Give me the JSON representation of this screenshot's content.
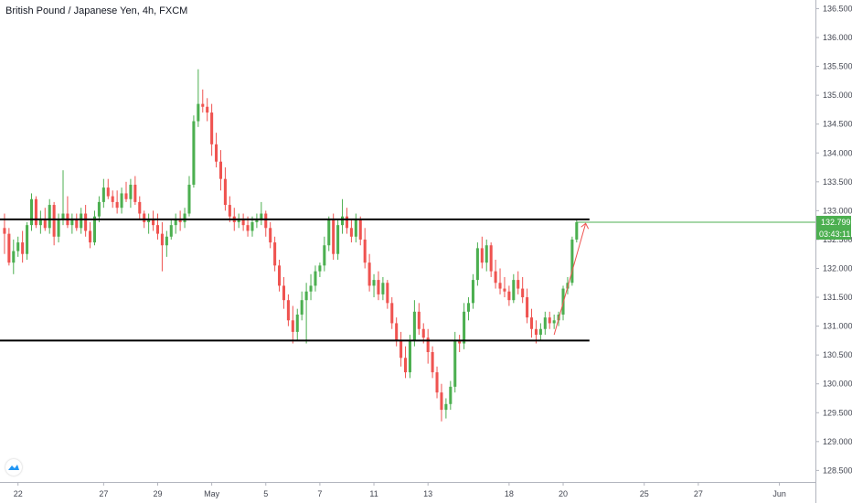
{
  "header": {
    "title": "British Pound / Japanese Yen, 4h, FXCM"
  },
  "colors": {
    "up": "#4caf50",
    "down": "#ef5350",
    "level": "#000000",
    "price_line": "#4caf50",
    "grid": "#f0f3fa",
    "axis": "#b2b5be"
  },
  "icons": {
    "logo": "tradingview-logo-icon"
  },
  "chart_data": {
    "type": "candlestick",
    "title": "British Pound / Japanese Yen, 4h, FXCM",
    "ylim": [
      128.3,
      136.65
    ],
    "y_ticks": [
      "128.500",
      "129.000",
      "129.500",
      "130.000",
      "130.500",
      "131.000",
      "131.500",
      "132.000",
      "132.500",
      "133.000",
      "133.500",
      "134.000",
      "134.500",
      "135.000",
      "135.500",
      "136.000",
      "136.500"
    ],
    "x_ticks": [
      {
        "label": "22",
        "bar": 3
      },
      {
        "label": "27",
        "bar": 22
      },
      {
        "label": "29",
        "bar": 34
      },
      {
        "label": "May",
        "bar": 46
      },
      {
        "label": "5",
        "bar": 58
      },
      {
        "label": "7",
        "bar": 70
      },
      {
        "label": "11",
        "bar": 82
      },
      {
        "label": "13",
        "bar": 94
      },
      {
        "label": "18",
        "bar": 112
      },
      {
        "label": "20",
        "bar": 124
      },
      {
        "label": "25",
        "bar": 142
      },
      {
        "label": "27",
        "bar": 154
      },
      {
        "label": "Jun",
        "bar": 172
      }
    ],
    "x_range": [
      -1,
      180
    ],
    "levels": [
      132.85,
      130.75
    ],
    "last_price": "132.799",
    "countdown": "03:43:11",
    "candles": [
      [
        132.7,
        132.95,
        132.25,
        132.6
      ],
      [
        132.6,
        132.7,
        132.05,
        132.1
      ],
      [
        132.1,
        132.5,
        131.9,
        132.3
      ],
      [
        132.3,
        132.55,
        132.2,
        132.45
      ],
      [
        132.45,
        132.65,
        132.1,
        132.25
      ],
      [
        132.25,
        132.8,
        132.15,
        132.75
      ],
      [
        132.75,
        133.3,
        132.65,
        133.2
      ],
      [
        133.2,
        133.25,
        132.7,
        132.75
      ],
      [
        132.75,
        133.0,
        132.6,
        132.85
      ],
      [
        132.85,
        133.05,
        132.65,
        132.7
      ],
      [
        132.7,
        133.2,
        132.6,
        133.1
      ],
      [
        133.1,
        133.15,
        132.4,
        132.55
      ],
      [
        132.55,
        132.95,
        132.45,
        132.85
      ],
      [
        132.85,
        133.7,
        132.75,
        132.95
      ],
      [
        132.95,
        133.25,
        132.7,
        132.75
      ],
      [
        132.75,
        132.95,
        132.6,
        132.85
      ],
      [
        132.85,
        132.95,
        132.65,
        132.7
      ],
      [
        132.7,
        133.05,
        132.6,
        132.95
      ],
      [
        132.95,
        133.1,
        132.55,
        132.65
      ],
      [
        132.65,
        132.8,
        132.35,
        132.45
      ],
      [
        132.45,
        133.0,
        132.4,
        132.9
      ],
      [
        132.9,
        133.25,
        132.8,
        133.15
      ],
      [
        133.15,
        133.55,
        133.05,
        133.4
      ],
      [
        133.4,
        133.55,
        133.2,
        133.25
      ],
      [
        133.25,
        133.35,
        133.05,
        133.15
      ],
      [
        133.15,
        133.35,
        132.95,
        133.05
      ],
      [
        133.05,
        133.4,
        132.95,
        133.3
      ],
      [
        133.3,
        133.5,
        133.15,
        133.2
      ],
      [
        133.2,
        133.55,
        133.05,
        133.45
      ],
      [
        133.45,
        133.6,
        133.1,
        133.15
      ],
      [
        133.15,
        133.25,
        132.85,
        132.95
      ],
      [
        132.95,
        133.0,
        132.7,
        132.8
      ],
      [
        132.8,
        132.95,
        132.6,
        132.85
      ],
      [
        132.85,
        133.0,
        132.65,
        132.75
      ],
      [
        132.75,
        132.95,
        132.5,
        132.6
      ],
      [
        132.6,
        132.8,
        131.95,
        132.4
      ],
      [
        132.4,
        132.65,
        132.2,
        132.55
      ],
      [
        132.55,
        132.85,
        132.5,
        132.75
      ],
      [
        132.75,
        132.95,
        132.6,
        132.85
      ],
      [
        132.85,
        133.0,
        132.65,
        132.8
      ],
      [
        132.8,
        133.05,
        132.7,
        132.95
      ],
      [
        132.95,
        133.6,
        132.9,
        133.45
      ],
      [
        133.45,
        134.65,
        133.4,
        134.55
      ],
      [
        134.55,
        135.45,
        134.45,
        134.85
      ],
      [
        134.85,
        135.1,
        134.7,
        134.8
      ],
      [
        134.8,
        134.95,
        134.55,
        134.7
      ],
      [
        134.7,
        134.85,
        133.95,
        134.15
      ],
      [
        134.15,
        134.35,
        133.75,
        133.85
      ],
      [
        133.85,
        134.05,
        133.35,
        133.55
      ],
      [
        133.55,
        133.75,
        133.0,
        133.1
      ],
      [
        133.1,
        133.25,
        132.8,
        132.9
      ],
      [
        132.9,
        133.05,
        132.65,
        132.8
      ],
      [
        132.8,
        132.95,
        132.7,
        132.85
      ],
      [
        132.85,
        132.95,
        132.65,
        132.75
      ],
      [
        132.75,
        132.9,
        132.55,
        132.65
      ],
      [
        132.65,
        132.9,
        132.55,
        132.8
      ],
      [
        132.8,
        132.95,
        132.7,
        132.85
      ],
      [
        132.85,
        133.15,
        132.75,
        132.95
      ],
      [
        132.95,
        133.0,
        132.55,
        132.7
      ],
      [
        132.7,
        132.8,
        132.35,
        132.45
      ],
      [
        132.45,
        132.55,
        131.95,
        132.05
      ],
      [
        132.05,
        132.15,
        131.6,
        131.7
      ],
      [
        131.7,
        131.85,
        131.3,
        131.45
      ],
      [
        131.45,
        131.55,
        131.0,
        131.1
      ],
      [
        131.1,
        131.35,
        130.7,
        130.9
      ],
      [
        130.9,
        131.3,
        130.75,
        131.2
      ],
      [
        131.2,
        131.6,
        131.1,
        131.45
      ],
      [
        131.45,
        131.75,
        130.7,
        131.6
      ],
      [
        131.6,
        131.9,
        131.45,
        131.7
      ],
      [
        131.7,
        132.05,
        131.6,
        131.95
      ],
      [
        131.95,
        132.1,
        131.85,
        132.05
      ],
      [
        132.05,
        132.55,
        131.95,
        132.4
      ],
      [
        132.4,
        132.9,
        132.3,
        132.85
      ],
      [
        132.85,
        132.95,
        132.15,
        132.25
      ],
      [
        132.25,
        132.85,
        132.15,
        132.75
      ],
      [
        132.75,
        133.2,
        132.6,
        132.9
      ],
      [
        132.9,
        133.05,
        132.6,
        132.7
      ],
      [
        132.7,
        132.85,
        132.45,
        132.55
      ],
      [
        132.55,
        132.95,
        132.45,
        132.85
      ],
      [
        132.85,
        132.9,
        132.4,
        132.5
      ],
      [
        132.5,
        132.7,
        132.0,
        132.1
      ],
      [
        132.1,
        132.25,
        131.6,
        131.7
      ],
      [
        131.7,
        131.9,
        131.5,
        131.8
      ],
      [
        131.8,
        131.95,
        131.45,
        131.55
      ],
      [
        131.55,
        131.85,
        131.45,
        131.75
      ],
      [
        131.75,
        131.8,
        131.3,
        131.4
      ],
      [
        131.4,
        131.5,
        130.95,
        131.05
      ],
      [
        131.05,
        131.15,
        130.65,
        130.75
      ],
      [
        130.75,
        130.9,
        130.3,
        130.45
      ],
      [
        130.45,
        130.65,
        130.1,
        130.2
      ],
      [
        130.2,
        130.85,
        130.1,
        130.75
      ],
      [
        130.75,
        131.45,
        130.65,
        131.25
      ],
      [
        131.25,
        131.4,
        130.85,
        130.95
      ],
      [
        130.95,
        131.05,
        130.7,
        130.8
      ],
      [
        130.8,
        130.95,
        130.35,
        130.55
      ],
      [
        130.55,
        130.65,
        130.1,
        130.2
      ],
      [
        130.2,
        130.3,
        129.75,
        129.85
      ],
      [
        129.85,
        130.0,
        129.35,
        129.55
      ],
      [
        129.55,
        129.75,
        129.4,
        129.65
      ],
      [
        129.65,
        130.05,
        129.55,
        129.95
      ],
      [
        129.95,
        130.9,
        129.85,
        130.75
      ],
      [
        130.75,
        130.85,
        130.55,
        130.7
      ],
      [
        130.7,
        131.4,
        130.6,
        131.25
      ],
      [
        131.25,
        131.5,
        131.1,
        131.4
      ],
      [
        131.4,
        131.9,
        131.3,
        131.8
      ],
      [
        131.8,
        132.45,
        131.7,
        132.35
      ],
      [
        132.35,
        132.55,
        132.0,
        132.1
      ],
      [
        132.1,
        132.5,
        131.95,
        132.4
      ],
      [
        132.4,
        132.45,
        131.85,
        131.95
      ],
      [
        131.95,
        132.15,
        131.65,
        131.75
      ],
      [
        131.75,
        132.0,
        131.55,
        131.65
      ],
      [
        131.65,
        131.85,
        131.5,
        131.6
      ],
      [
        131.6,
        131.7,
        131.35,
        131.45
      ],
      [
        131.45,
        131.9,
        131.4,
        131.8
      ],
      [
        131.8,
        131.95,
        131.55,
        131.65
      ],
      [
        131.65,
        131.85,
        131.4,
        131.5
      ],
      [
        131.5,
        131.65,
        131.05,
        131.15
      ],
      [
        131.15,
        131.3,
        130.8,
        130.95
      ],
      [
        130.95,
        131.1,
        130.7,
        130.85
      ],
      [
        130.85,
        131.05,
        130.75,
        130.95
      ],
      [
        130.95,
        131.25,
        130.85,
        131.15
      ],
      [
        131.15,
        131.25,
        130.95,
        131.05
      ],
      [
        131.05,
        131.2,
        130.95,
        131.1
      ],
      [
        131.1,
        131.25,
        131.0,
        131.2
      ],
      [
        131.2,
        131.7,
        131.1,
        131.65
      ],
      [
        131.65,
        131.85,
        131.55,
        131.75
      ],
      [
        131.75,
        132.55,
        131.7,
        132.5
      ],
      [
        132.5,
        132.85,
        132.45,
        132.8
      ]
    ]
  }
}
